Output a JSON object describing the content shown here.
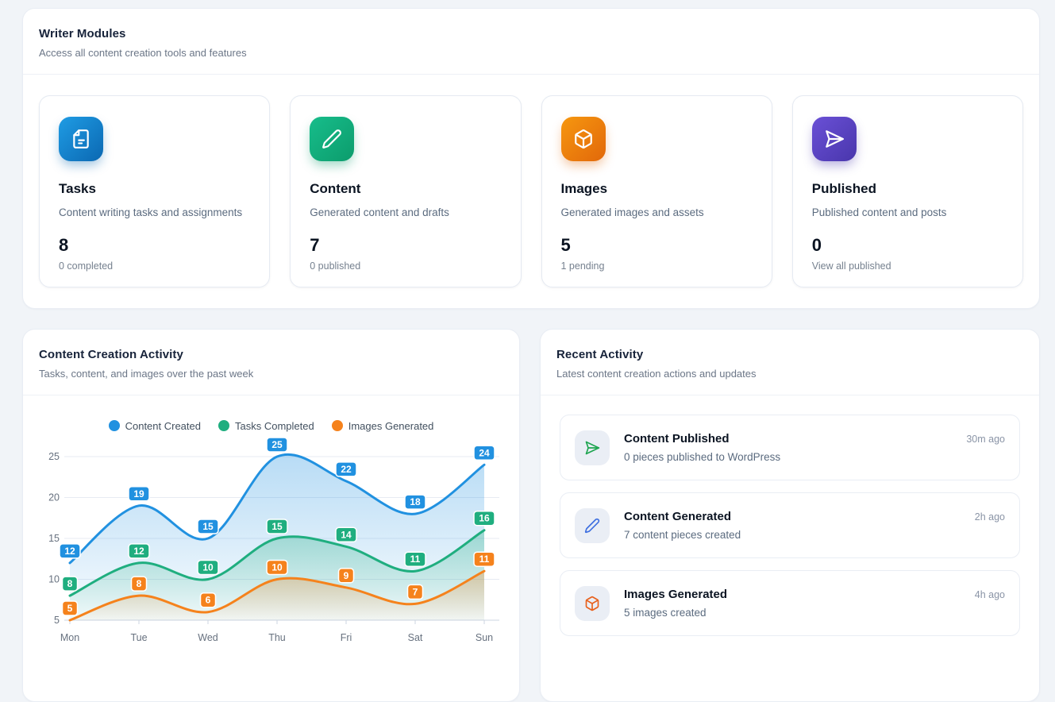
{
  "writer_modules": {
    "title": "Writer Modules",
    "subtitle": "Access all content creation tools and features",
    "cards": [
      {
        "icon": "file-icon",
        "title": "Tasks",
        "description": "Content writing tasks and assignments",
        "value": "8",
        "sub": "0 completed",
        "color_from": "#1f9ce4",
        "color_to": "#0b68b2"
      },
      {
        "icon": "pencil-icon",
        "title": "Content",
        "description": "Generated content and drafts",
        "value": "7",
        "sub": "0 published",
        "color_from": "#17bd8b",
        "color_to": "#0c9c6c"
      },
      {
        "icon": "cube-icon",
        "title": "Images",
        "description": "Generated images and assets",
        "value": "5",
        "sub": "1 pending",
        "color_from": "#f6970f",
        "color_to": "#e2680a"
      },
      {
        "icon": "send-icon",
        "title": "Published",
        "description": "Published content and posts",
        "value": "0",
        "sub": "View all published",
        "color_from": "#6a50d6",
        "color_to": "#4936ac"
      }
    ]
  },
  "activity_chart": {
    "title": "Content Creation Activity",
    "subtitle": "Tasks, content, and images over the past week"
  },
  "chart_data": {
    "type": "line",
    "title": "Content Creation Activity",
    "categories": [
      "Mon",
      "Tue",
      "Wed",
      "Thu",
      "Fri",
      "Sat",
      "Sun"
    ],
    "series": [
      {
        "name": "Content Created",
        "color": "#2191e0",
        "values": [
          12,
          19,
          15,
          25,
          22,
          18,
          24
        ]
      },
      {
        "name": "Tasks Completed",
        "color": "#1fae7f",
        "values": [
          8,
          12,
          10,
          15,
          14,
          11,
          16
        ]
      },
      {
        "name": "Images Generated",
        "color": "#f5821c",
        "values": [
          5,
          8,
          6,
          10,
          9,
          7,
          11
        ]
      }
    ],
    "xlabel": "",
    "ylabel": "",
    "ylim": [
      5,
      25
    ],
    "yticks": [
      5,
      10,
      15,
      20,
      25
    ],
    "grid": true,
    "legend_position": "top",
    "smooth": true,
    "area": true,
    "point_labels": true
  },
  "recent_activity": {
    "title": "Recent Activity",
    "subtitle": "Latest content creation actions and updates",
    "items": [
      {
        "icon": "send-icon",
        "icon_color": "#1ea550",
        "title": "Content Published",
        "description": "0 pieces published to WordPress",
        "time": "30m ago"
      },
      {
        "icon": "pencil-icon",
        "icon_color": "#3e6fe0",
        "title": "Content Generated",
        "description": "7 content pieces created",
        "time": "2h ago"
      },
      {
        "icon": "cube-icon",
        "icon_color": "#e8601c",
        "title": "Images Generated",
        "description": "5 images created",
        "time": "4h ago"
      }
    ]
  }
}
